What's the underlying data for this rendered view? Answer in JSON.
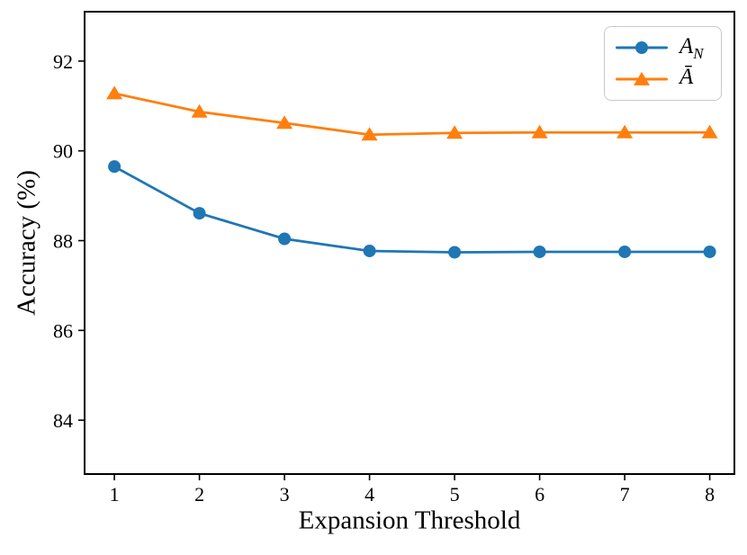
{
  "chart_data": {
    "type": "line",
    "x": [
      1,
      2,
      3,
      4,
      5,
      6,
      7,
      8
    ],
    "series": [
      {
        "name": "A_N",
        "legend": {
          "main": "A",
          "sub": "N"
        },
        "color": "#1f77b4",
        "marker": "circle",
        "values": [
          89.65,
          88.61,
          88.04,
          87.77,
          87.74,
          87.75,
          87.75,
          87.75
        ]
      },
      {
        "name": "A-bar",
        "legend": {
          "main": "Ā",
          "sub": ""
        },
        "color": "#ff7f0e",
        "marker": "triangle",
        "values": [
          91.28,
          90.87,
          90.62,
          90.36,
          90.4,
          90.41,
          90.41,
          90.41
        ]
      }
    ],
    "title": "",
    "xlabel": "Expansion Threshold",
    "ylabel": "Accuracy (%)",
    "xlim": [
      0.65,
      8.29
    ],
    "ylim": [
      82.8,
      93.1
    ],
    "xticks": [
      "1",
      "2",
      "3",
      "4",
      "5",
      "6",
      "7",
      "8"
    ],
    "yticks": [
      "84",
      "86",
      "88",
      "90",
      "92"
    ],
    "grid": false,
    "legend_position": "upper right"
  }
}
